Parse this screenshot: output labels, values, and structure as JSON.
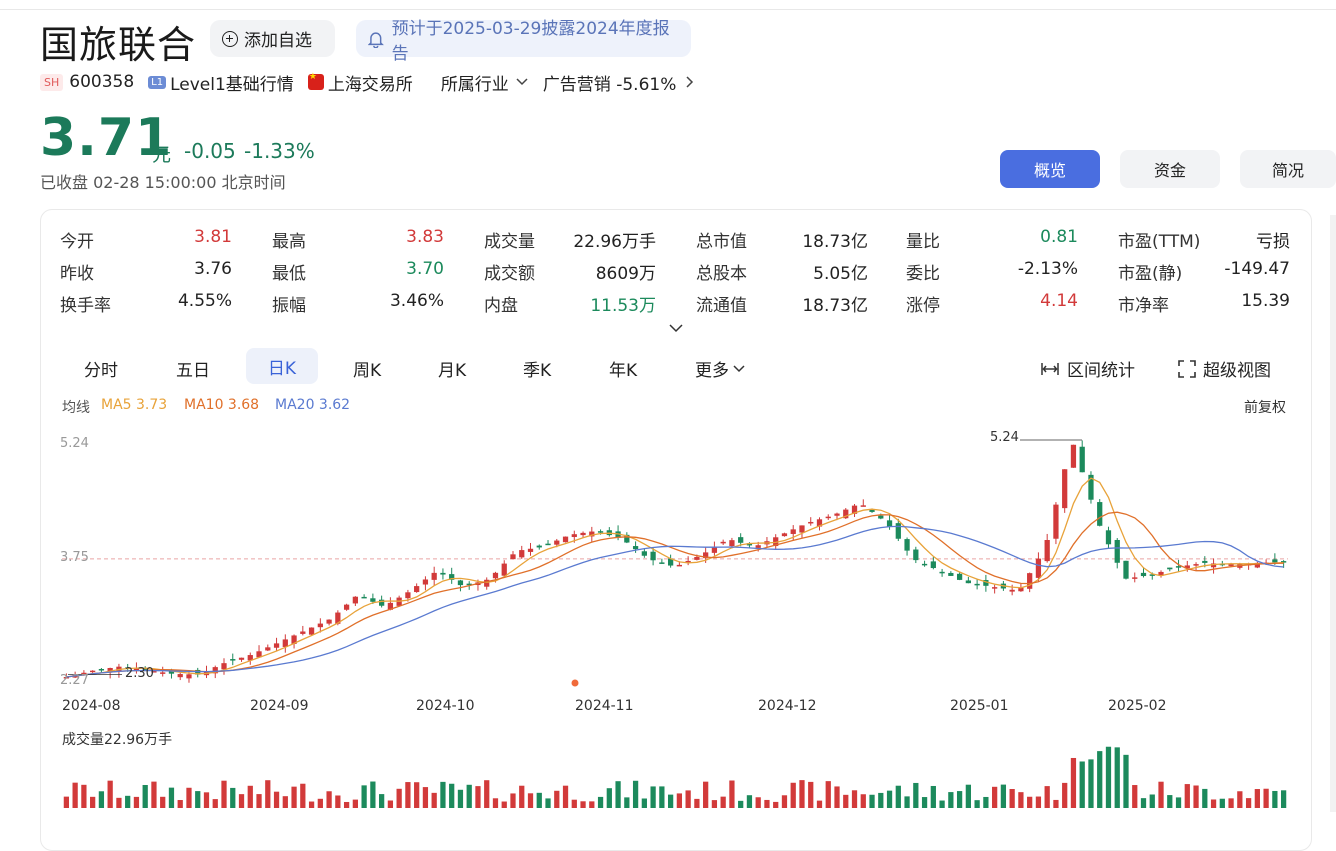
{
  "stock": {
    "name": "国旅联合",
    "add_watch": "添加自选",
    "notice": "预计于2025-03-29披露2024年度报告",
    "market_badge": "SH",
    "code": "600358",
    "level_badge": "L1",
    "level_text": "Level1基础行情",
    "exchange": "上海交易所",
    "industry_label": "所属行业",
    "industry_value": "广告营销 -5.61%",
    "price": "3.71",
    "unit": "元",
    "change": "-0.05",
    "change_pct": "-1.33%",
    "status": "已收盘  02-28 15:00:00 北京时间"
  },
  "tabs": [
    "概览",
    "资金",
    "简况"
  ],
  "quote": [
    [
      {
        "label": "今开",
        "value": "3.81",
        "color": "red"
      },
      {
        "label": "最高",
        "value": "3.83",
        "color": "red"
      },
      {
        "label": "成交量",
        "value": "22.96万手",
        "color": ""
      },
      {
        "label": "总市值",
        "value": "18.73亿",
        "color": ""
      },
      {
        "label": "量比",
        "value": "0.81",
        "color": "green"
      },
      {
        "label": "市盈(TTM)",
        "value": "亏损",
        "color": ""
      }
    ],
    [
      {
        "label": "昨收",
        "value": "3.76",
        "color": ""
      },
      {
        "label": "最低",
        "value": "3.70",
        "color": "green"
      },
      {
        "label": "成交额",
        "value": "8609万",
        "color": ""
      },
      {
        "label": "总股本",
        "value": "5.05亿",
        "color": ""
      },
      {
        "label": "委比",
        "value": "-2.13%",
        "color": ""
      },
      {
        "label": "市盈(静)",
        "value": "-149.47",
        "color": ""
      }
    ],
    [
      {
        "label": "换手率",
        "value": "4.55%",
        "color": ""
      },
      {
        "label": "振幅",
        "value": "3.46%",
        "color": ""
      },
      {
        "label": "内盘",
        "value": "11.53万",
        "color": "green"
      },
      {
        "label": "流通值",
        "value": "18.73亿",
        "color": ""
      },
      {
        "label": "涨停",
        "value": "4.14",
        "color": "red"
      },
      {
        "label": "市净率",
        "value": "15.39",
        "color": ""
      }
    ]
  ],
  "ktabs": [
    "分时",
    "五日",
    "日K",
    "周K",
    "月K",
    "季K",
    "年K",
    "更多"
  ],
  "tools": {
    "range_stat": "区间统计",
    "super_view": "超级视图"
  },
  "ma": {
    "label": "均线",
    "ma5": "MA5 3.73",
    "ma10": "MA10 3.68",
    "ma20": "MA20 3.62",
    "adjust": "前复权"
  },
  "colors": {
    "up": "#d23a3a",
    "down": "#1c8a5c",
    "ma5": "#e8a33a",
    "ma10": "#e0702a",
    "ma20": "#5a7ad0",
    "accent": "#4a6ee0"
  },
  "chart_data": {
    "type": "candlestick",
    "y_axis_labels": [
      "5.24",
      "3.75",
      "2.27"
    ],
    "high_marker": "5.24",
    "low_marker": "2.30",
    "x_labels": [
      "2024-08",
      "2024-09",
      "2024-10",
      "2024-11",
      "2024-12",
      "2025-01",
      "2025-02"
    ],
    "volume_label": "成交量22.96万手",
    "close_series_approx": [
      2.27,
      2.35,
      2.4,
      2.36,
      2.31,
      2.3,
      2.45,
      2.55,
      2.7,
      2.85,
      3.0,
      3.3,
      3.15,
      3.35,
      3.6,
      3.4,
      3.5,
      3.85,
      3.9,
      4.05,
      4.1,
      4.0,
      3.75,
      3.65,
      3.8,
      4.0,
      3.9,
      4.05,
      4.2,
      4.3,
      4.45,
      4.2,
      3.75,
      3.6,
      3.45,
      3.4,
      3.35,
      3.9,
      5.24,
      4.2,
      3.5,
      3.55,
      3.65,
      3.7,
      3.68,
      3.7,
      3.71
    ]
  }
}
